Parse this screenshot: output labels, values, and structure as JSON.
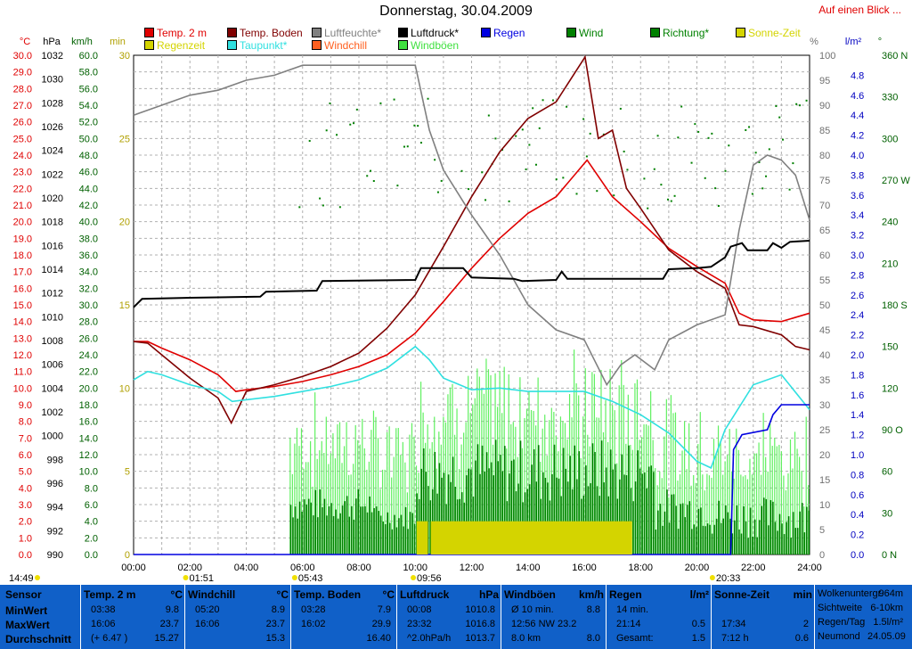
{
  "title": "Donnerstag, 30.04.2009",
  "link_text": "Auf einen Blick ...",
  "axis_units": {
    "temp": "°C",
    "press": "hPa",
    "wind": "km/h",
    "min": "min",
    "pct": "%",
    "rain": "l/m²",
    "deg": "°"
  },
  "legend": [
    {
      "label": "Temp. 2 m",
      "color": "#e00000"
    },
    {
      "label": "Temp. Boden",
      "color": "#800000"
    },
    {
      "label": "Luftfeuchte*",
      "color": "#808080"
    },
    {
      "label": "Luftdruck*",
      "color": "#000000"
    },
    {
      "label": "Regen",
      "color": "#0000e0"
    },
    {
      "label": "Wind",
      "color": "#008000"
    },
    {
      "label": "Richtung*",
      "color": "#008000"
    },
    {
      "label": "Sonne-Zeit",
      "color": "#d4d400"
    },
    {
      "label": "Regenzeit",
      "color": "#d4d400"
    },
    {
      "label": "Taupunkt*",
      "color": "#30e0e0"
    },
    {
      "label": "Windchill",
      "color": "#ff6020"
    },
    {
      "label": "Windböen",
      "color": "#40e040"
    }
  ],
  "chart_data": {
    "type": "line",
    "x_ticks": [
      "00:00",
      "02:00",
      "04:00",
      "06:00",
      "08:00",
      "10:00",
      "12:00",
      "14:00",
      "16:00",
      "18:00",
      "20:00",
      "22:00",
      "24:00"
    ],
    "temp_ticks": [
      "30.0",
      "29.0",
      "28.0",
      "27.0",
      "26.0",
      "25.0",
      "24.0",
      "23.0",
      "22.0",
      "21.0",
      "20.0",
      "19.0",
      "18.0",
      "17.0",
      "16.0",
      "15.0",
      "14.0",
      "13.0",
      "12.0",
      "11.0",
      "10.0",
      "9.0",
      "8.0",
      "7.0",
      "6.0",
      "5.0",
      "4.0",
      "3.0",
      "2.0",
      "1.0",
      "0.0"
    ],
    "press_ticks": [
      "1032",
      "1030",
      "1028",
      "1026",
      "1024",
      "1022",
      "1020",
      "1018",
      "1016",
      "1014",
      "1012",
      "1010",
      "1008",
      "1006",
      "1004",
      "1002",
      "1000",
      "998",
      "996",
      "994",
      "992",
      "990"
    ],
    "wind_ticks": [
      "60.0",
      "58.0",
      "56.0",
      "54.0",
      "52.0",
      "50.0",
      "48.0",
      "46.0",
      "44.0",
      "42.0",
      "40.0",
      "38.0",
      "36.0",
      "34.0",
      "32.0",
      "30.0",
      "28.0",
      "26.0",
      "24.0",
      "22.0",
      "20.0",
      "18.0",
      "16.0",
      "14.0",
      "12.0",
      "10.0",
      "8.0",
      "6.0",
      "4.0",
      "2.0",
      "0.0"
    ],
    "min_ticks": [
      "30",
      "25",
      "20",
      "15",
      "10",
      "5",
      "0"
    ],
    "pct_ticks": [
      "100",
      "95",
      "90",
      "85",
      "80",
      "75",
      "70",
      "65",
      "60",
      "55",
      "50",
      "45",
      "40",
      "35",
      "30",
      "25",
      "20",
      "15",
      "10",
      "5",
      "0"
    ],
    "rain_ticks": [
      "4.8",
      "4.6",
      "4.4",
      "4.2",
      "4.0",
      "3.8",
      "3.6",
      "3.4",
      "3.2",
      "3.0",
      "2.8",
      "2.6",
      "2.4",
      "2.2",
      "2.0",
      "1.8",
      "1.6",
      "1.4",
      "1.2",
      "1.0",
      "0.8",
      "0.6",
      "0.4",
      "0.2",
      "0.0"
    ],
    "deg_ticks": [
      "360 N",
      "330",
      "300",
      "270 W",
      "240",
      "210",
      "180 S",
      "150",
      "120",
      "90 O",
      "60",
      "30",
      "0 N"
    ],
    "sun_events": [
      {
        "time": "14:49",
        "h": 0.0
      },
      {
        "time": "01:51",
        "h": 1.85
      },
      {
        "time": "05:43",
        "h": 5.72
      },
      {
        "time": "09:56",
        "h": 9.93
      },
      {
        "time": "20:33",
        "h": 20.55
      }
    ],
    "series": [
      {
        "name": "Temp. 2 m",
        "unit": "°C",
        "color": "#e00000",
        "points": [
          [
            0,
            12.8
          ],
          [
            0.5,
            12.8
          ],
          [
            1.0,
            12.4
          ],
          [
            2.0,
            11.7
          ],
          [
            3.0,
            10.8
          ],
          [
            3.63,
            9.8
          ],
          [
            4.0,
            9.9
          ],
          [
            5.0,
            10.1
          ],
          [
            6.0,
            10.4
          ],
          [
            7.0,
            10.8
          ],
          [
            8.0,
            11.3
          ],
          [
            9.0,
            12.0
          ],
          [
            10.0,
            13.3
          ],
          [
            11.0,
            15.2
          ],
          [
            12.0,
            17.2
          ],
          [
            13.0,
            19.0
          ],
          [
            14.0,
            20.5
          ],
          [
            15.0,
            21.5
          ],
          [
            16.1,
            23.7
          ],
          [
            17.0,
            21.5
          ],
          [
            18.0,
            20.0
          ],
          [
            19.0,
            18.4
          ],
          [
            20.0,
            17.3
          ],
          [
            21.0,
            16.3
          ],
          [
            21.5,
            14.5
          ],
          [
            22.0,
            14.1
          ],
          [
            23.0,
            14.0
          ],
          [
            24.0,
            14.5
          ]
        ]
      },
      {
        "name": "Temp. Boden",
        "unit": "°C",
        "color": "#800000",
        "points": [
          [
            0,
            12.8
          ],
          [
            0.5,
            12.7
          ],
          [
            1.0,
            12.0
          ],
          [
            2.0,
            10.6
          ],
          [
            3.0,
            9.4
          ],
          [
            3.47,
            7.9
          ],
          [
            4.0,
            9.8
          ],
          [
            5.0,
            10.2
          ],
          [
            6.0,
            10.7
          ],
          [
            7.0,
            11.3
          ],
          [
            8.0,
            12.1
          ],
          [
            9.0,
            13.6
          ],
          [
            10.0,
            15.6
          ],
          [
            11.0,
            18.5
          ],
          [
            12.0,
            21.5
          ],
          [
            13.0,
            24.2
          ],
          [
            14.0,
            26.2
          ],
          [
            15.0,
            27.2
          ],
          [
            16.03,
            29.9
          ],
          [
            16.5,
            25.0
          ],
          [
            17.0,
            25.5
          ],
          [
            17.5,
            22.0
          ],
          [
            18.0,
            20.8
          ],
          [
            19.0,
            18.3
          ],
          [
            20.0,
            17.0
          ],
          [
            21.0,
            16.0
          ],
          [
            21.5,
            13.8
          ],
          [
            22.0,
            13.7
          ],
          [
            23.0,
            13.2
          ],
          [
            23.5,
            12.5
          ],
          [
            24.0,
            12.3
          ]
        ]
      },
      {
        "name": "Taupunkt*",
        "unit": "°C",
        "color": "#30e0e0",
        "points": [
          [
            0,
            10.5
          ],
          [
            0.5,
            11.0
          ],
          [
            1.0,
            10.8
          ],
          [
            2.0,
            10.2
          ],
          [
            3.0,
            9.8
          ],
          [
            3.5,
            9.2
          ],
          [
            4.0,
            9.3
          ],
          [
            5.0,
            9.5
          ],
          [
            6.0,
            9.8
          ],
          [
            7.0,
            10.1
          ],
          [
            8.0,
            10.5
          ],
          [
            9.0,
            11.2
          ],
          [
            10.0,
            12.5
          ],
          [
            10.5,
            11.7
          ],
          [
            11.0,
            10.6
          ],
          [
            12.0,
            9.9
          ],
          [
            13.0,
            10.0
          ],
          [
            14.0,
            9.8
          ],
          [
            15.0,
            9.8
          ],
          [
            16.0,
            9.8
          ],
          [
            17.0,
            9.2
          ],
          [
            18.0,
            8.4
          ],
          [
            19.0,
            7.3
          ],
          [
            20.0,
            5.6
          ],
          [
            20.5,
            5.2
          ],
          [
            21.0,
            7.5
          ],
          [
            22.0,
            10.2
          ],
          [
            23.0,
            10.8
          ],
          [
            24.0,
            8.7
          ]
        ]
      },
      {
        "name": "Luftfeuchte*",
        "unit": "%",
        "color": "#808080",
        "points": [
          [
            0,
            88
          ],
          [
            1.0,
            90
          ],
          [
            2.0,
            92
          ],
          [
            3.0,
            93
          ],
          [
            4.0,
            95
          ],
          [
            5.0,
            96
          ],
          [
            6.0,
            98
          ],
          [
            7.0,
            98
          ],
          [
            8.0,
            98
          ],
          [
            9.0,
            98
          ],
          [
            10.0,
            98
          ],
          [
            10.5,
            85
          ],
          [
            11.0,
            77
          ],
          [
            12.0,
            68
          ],
          [
            13.0,
            60
          ],
          [
            14.0,
            50
          ],
          [
            15.0,
            45
          ],
          [
            16.0,
            43
          ],
          [
            16.8,
            34
          ],
          [
            17.3,
            38
          ],
          [
            17.8,
            40
          ],
          [
            18.5,
            37
          ],
          [
            19.0,
            43
          ],
          [
            20.0,
            46
          ],
          [
            21.0,
            48
          ],
          [
            21.5,
            65
          ],
          [
            22.0,
            78
          ],
          [
            22.5,
            80
          ],
          [
            23.0,
            79
          ],
          [
            23.5,
            76
          ],
          [
            24.0,
            67
          ]
        ]
      },
      {
        "name": "Luftdruck*",
        "unit": "hPa",
        "color": "#000000",
        "points": [
          [
            0,
            1010.8
          ],
          [
            0.3,
            1011.5
          ],
          [
            2.0,
            1011.6
          ],
          [
            4.5,
            1011.7
          ],
          [
            4.7,
            1012.1
          ],
          [
            6.5,
            1012.2
          ],
          [
            6.7,
            1013.0
          ],
          [
            10.0,
            1013.1
          ],
          [
            10.2,
            1014.1
          ],
          [
            11.7,
            1014.1
          ],
          [
            12.0,
            1013.3
          ],
          [
            13.5,
            1013.2
          ],
          [
            13.8,
            1013.0
          ],
          [
            15.0,
            1013.1
          ],
          [
            15.2,
            1013.8
          ],
          [
            15.4,
            1013.2
          ],
          [
            18.8,
            1013.2
          ],
          [
            19.0,
            1014.0
          ],
          [
            20.0,
            1014.1
          ],
          [
            20.5,
            1014.2
          ],
          [
            21.0,
            1015.0
          ],
          [
            21.2,
            1015.9
          ],
          [
            21.6,
            1016.2
          ],
          [
            21.8,
            1015.6
          ],
          [
            22.5,
            1015.6
          ],
          [
            22.7,
            1016.2
          ],
          [
            23.0,
            1015.8
          ],
          [
            23.3,
            1016.3
          ],
          [
            24.0,
            1016.4
          ]
        ]
      },
      {
        "name": "Regen",
        "unit": "l/m²",
        "color": "#0000e0",
        "points": [
          [
            0,
            0
          ],
          [
            21.2,
            0
          ],
          [
            21.3,
            1.05
          ],
          [
            21.6,
            1.2
          ],
          [
            22.5,
            1.25
          ],
          [
            22.7,
            1.4
          ],
          [
            23.0,
            1.5
          ],
          [
            24.0,
            1.5
          ]
        ]
      },
      {
        "name": "Sonne-Zeit",
        "unit": "min",
        "color": "#d4d400",
        "points": [
          [
            10.05,
            2
          ],
          [
            10.45,
            2
          ],
          [
            10.55,
            2
          ],
          [
            17.7,
            2
          ]
        ]
      }
    ]
  },
  "stats": {
    "headers": [
      {
        "label": "Sensor",
        "unit": ""
      },
      {
        "label": "Temp. 2 m",
        "unit": "°C"
      },
      {
        "label": "Windchill",
        "unit": "°C"
      },
      {
        "label": "Temp. Boden",
        "unit": "°C"
      },
      {
        "label": "Luftdruck",
        "unit": "hPa"
      },
      {
        "label": "Windböen",
        "unit": "km/h"
      },
      {
        "label": "Regen",
        "unit": "l/m²"
      },
      {
        "label": "Sonne-Zeit",
        "unit": "min"
      }
    ],
    "row_labels": [
      "MinWert",
      "MaxWert",
      "Durchschnitt"
    ],
    "temp2m": [
      [
        "03:38",
        "9.8"
      ],
      [
        "16:06",
        "23.7"
      ],
      [
        "(+ 6.47 )",
        "15.27"
      ]
    ],
    "windchill": [
      [
        "05:20",
        "8.9"
      ],
      [
        "16:06",
        "23.7"
      ],
      [
        "",
        "15.3"
      ]
    ],
    "boden": [
      [
        "03:28",
        "7.9"
      ],
      [
        "16:02",
        "29.9"
      ],
      [
        "",
        "16.40"
      ]
    ],
    "druck": [
      [
        "00:08",
        "1010.8"
      ],
      [
        "23:32",
        "1016.8"
      ],
      [
        "^2.0hPa/h",
        "1013.7"
      ]
    ],
    "boeen": [
      [
        "Ø 10 min.",
        "8.8"
      ],
      [
        "12:56   NW 23.2",
        ""
      ],
      [
        "8.0 km",
        "8.0"
      ]
    ],
    "regen": [
      [
        "14 min.",
        ""
      ],
      [
        "21:14",
        "0.5"
      ],
      [
        "Gesamt:",
        "1.5"
      ]
    ],
    "sonne": [
      [
        "",
        ""
      ],
      [
        "17:34",
        "2"
      ],
      [
        "7:12 h",
        "0.6"
      ]
    ],
    "info": [
      [
        "Wolkenuntergr.",
        "964m"
      ],
      [
        "Sichtweite",
        "6-10km"
      ],
      [
        "Regen/Tag",
        "1.5l/m²"
      ],
      [
        "Neumond",
        "24.05.09"
      ]
    ]
  }
}
